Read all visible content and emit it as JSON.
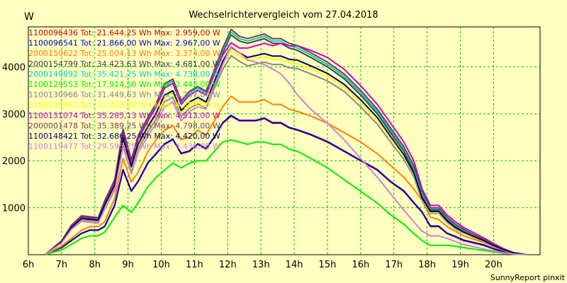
{
  "chart_data": {
    "type": "line",
    "title": "Wechselrichtervergleich vom 27.04.2018",
    "ylabel": "W",
    "credit": "SunnyReport pinxit",
    "xlim": [
      6,
      21.4
    ],
    "ylim": [
      0,
      4850
    ],
    "x_ticks": [
      6,
      7,
      8,
      9,
      10,
      11,
      12,
      13,
      14,
      15,
      16,
      17,
      18,
      19,
      20
    ],
    "x_tick_labels": [
      "6h",
      "7h",
      "8h",
      "9h",
      "10h",
      "11h",
      "12h",
      "13h",
      "14h",
      "15h",
      "16h",
      "17h",
      "18h",
      "19h",
      "20h"
    ],
    "y_ticks": [
      1000,
      2000,
      3000,
      4000
    ],
    "y_tick_labels": [
      "1000",
      "2000",
      "3000",
      "4000"
    ],
    "grid": true,
    "legend_position": "top-left",
    "x": [
      6.5,
      7,
      7.3,
      7.6,
      7.85,
      8.1,
      8.3,
      8.6,
      8.85,
      9.1,
      9.3,
      9.6,
      9.85,
      10.1,
      10.35,
      10.6,
      10.85,
      11.1,
      11.35,
      11.6,
      11.85,
      12.1,
      12.35,
      12.6,
      12.85,
      13.1,
      13.35,
      13.6,
      13.85,
      14.1,
      14.5,
      15,
      15.5,
      16,
      16.5,
      16.9,
      17.3,
      17.6,
      17.85,
      18.1,
      18.35,
      18.6,
      18.85,
      19.1,
      19.4,
      19.7,
      20,
      20.3,
      20.6,
      21
    ],
    "series": [
      {
        "name": "1100096436 Tot: 21.644,25 Wh Max: 2.959,00 W",
        "color": "#cc0000",
        "values": [
          0,
          150,
          300,
          450,
          520,
          520,
          600,
          1050,
          1800,
          1350,
          1550,
          1950,
          2150,
          2350,
          2450,
          2150,
          2200,
          2350,
          2250,
          2500,
          2800,
          2950,
          2850,
          2850,
          2850,
          2900,
          2800,
          2800,
          2700,
          2650,
          2550,
          2400,
          2200,
          2000,
          1800,
          1550,
          1350,
          1100,
          900,
          600,
          600,
          450,
          380,
          300,
          250,
          200,
          120,
          60,
          20,
          0
        ]
      },
      {
        "name": "1100096541 Tot: 21.866,00 Wh Max: 2.967,00 W",
        "color": "#0000cc",
        "values": [
          0,
          155,
          305,
          455,
          525,
          525,
          605,
          1060,
          1810,
          1360,
          1560,
          1960,
          2160,
          2360,
          2460,
          2160,
          2210,
          2360,
          2260,
          2510,
          2810,
          2967,
          2860,
          2860,
          2860,
          2910,
          2810,
          2810,
          2710,
          2660,
          2560,
          2410,
          2210,
          2010,
          1810,
          1560,
          1360,
          1110,
          910,
          610,
          610,
          460,
          390,
          310,
          260,
          210,
          130,
          70,
          25,
          0
        ]
      },
      {
        "name": "2000150622 Tot: 25.004,13 Wh Max: 3.374,00 W",
        "color": "#ff8000",
        "values": [
          0,
          180,
          350,
          520,
          600,
          600,
          700,
          1200,
          2050,
          1550,
          1750,
          2200,
          2450,
          2650,
          2750,
          2450,
          2500,
          2650,
          2550,
          2850,
          3150,
          3374,
          3250,
          3250,
          3250,
          3300,
          3200,
          3200,
          3100,
          3050,
          2950,
          2800,
          2600,
          2400,
          2150,
          1900,
          1650,
          1400,
          1150,
          800,
          750,
          600,
          500,
          400,
          330,
          260,
          170,
          90,
          30,
          0
        ]
      },
      {
        "name": "2000154799 Tot: 34.423,63 Wh Max: 4.681,00 W",
        "color": "#404040",
        "values": [
          0,
          280,
          600,
          800,
          780,
          760,
          1100,
          1550,
          2600,
          1950,
          2450,
          2850,
          3150,
          3550,
          3650,
          3200,
          3400,
          3500,
          3400,
          3850,
          4300,
          4681,
          4550,
          4500,
          4550,
          4600,
          4500,
          4500,
          4400,
          4350,
          4200,
          4000,
          3750,
          3400,
          3000,
          2600,
          2200,
          1800,
          1250,
          950,
          950,
          750,
          600,
          500,
          400,
          300,
          200,
          110,
          40,
          0
        ]
      },
      {
        "name": "2000149892 Tot: 35.421,25 Wh Max: 4.738,00 W",
        "color": "#00cccc",
        "values": [
          0,
          290,
          620,
          820,
          800,
          780,
          1130,
          1580,
          2650,
          2000,
          2500,
          2900,
          3200,
          3600,
          3700,
          3250,
          3450,
          3550,
          3450,
          3900,
          4350,
          4738,
          4600,
          4550,
          4600,
          4650,
          4550,
          4550,
          4450,
          4400,
          4250,
          4050,
          3800,
          3450,
          3050,
          2650,
          2250,
          1850,
          1300,
          980,
          980,
          780,
          630,
          520,
          420,
          320,
          210,
          115,
          42,
          0
        ]
      },
      {
        "name": "1100129553 Tot: 17.914,50 Wh Max: 2.442,00 W",
        "color": "#00ee00",
        "values": [
          0,
          100,
          220,
          350,
          400,
          400,
          480,
          800,
          1050,
          900,
          1100,
          1450,
          1650,
          1800,
          1950,
          1850,
          1950,
          2000,
          2000,
          2200,
          2400,
          2442,
          2400,
          2350,
          2400,
          2400,
          2350,
          2350,
          2250,
          2200,
          2050,
          1850,
          1600,
          1350,
          1100,
          850,
          650,
          450,
          300,
          200,
          200,
          200,
          180,
          150,
          120,
          90,
          60,
          30,
          10,
          0
        ]
      },
      {
        "name": "1100130966 Tot: 31.449,63 Wh Max: 4.237,00 W",
        "color": "#888888",
        "values": [
          0,
          260,
          560,
          740,
          720,
          700,
          1010,
          1420,
          2380,
          1790,
          2250,
          2620,
          2890,
          3260,
          3350,
          2940,
          3120,
          3210,
          3120,
          3540,
          3950,
          4237,
          4120,
          4020,
          4060,
          4100,
          4050,
          4050,
          3980,
          3960,
          3850,
          3700,
          3480,
          3150,
          2780,
          2400,
          2030,
          1660,
          1150,
          880,
          880,
          690,
          550,
          460,
          370,
          280,
          180,
          100,
          36,
          0
        ]
      },
      {
        "name": "1100130962 Tot: 32.303,00 Wh Max: 4.353,00 W",
        "color": "#ffff00",
        "values": [
          0,
          270,
          580,
          760,
          740,
          720,
          1040,
          1460,
          2440,
          1840,
          2310,
          2690,
          2970,
          3350,
          3440,
          3020,
          3200,
          3300,
          3200,
          3630,
          4060,
          4353,
          4230,
          4130,
          4170,
          4210,
          4160,
          4160,
          4090,
          4070,
          3950,
          3800,
          3570,
          3240,
          2860,
          2470,
          2090,
          1710,
          1180,
          900,
          900,
          710,
          570,
          470,
          380,
          290,
          190,
          105,
          38,
          0
        ]
      },
      {
        "name": "1100131074 Tot: 35.285,13 Wh Max: 4.513,00 W",
        "color": "#cc00cc",
        "values": [
          0,
          285,
          610,
          810,
          790,
          770,
          1120,
          1560,
          2600,
          1960,
          2450,
          2850,
          3150,
          3550,
          3650,
          3200,
          3400,
          3500,
          3400,
          3850,
          4250,
          4513,
          4400,
          4400,
          4450,
          4500,
          4450,
          4500,
          4450,
          4450,
          4350,
          4200,
          3950,
          3600,
          3200,
          2800,
          2400,
          2000,
          1400,
          1050,
          1050,
          850,
          700,
          580,
          470,
          360,
          240,
          130,
          45,
          0
        ]
      },
      {
        "name": "2000001478 Tot: 35.389,25 Wh Max: 4.798,00 W",
        "color": "#704050",
        "values": [
          0,
          295,
          630,
          830,
          810,
          790,
          1150,
          1600,
          2680,
          2020,
          2530,
          2930,
          3230,
          3640,
          3740,
          3280,
          3480,
          3580,
          3480,
          3940,
          4400,
          4798,
          4650,
          4600,
          4650,
          4700,
          4600,
          4600,
          4500,
          4450,
          4300,
          4100,
          3850,
          3500,
          3100,
          2700,
          2300,
          1900,
          1350,
          1000,
          1000,
          800,
          650,
          540,
          430,
          330,
          220,
          120,
          44,
          0
        ]
      },
      {
        "name": "1100148421 Tot: 32.686,25 Wh Max: 4.420,00 W",
        "color": "#000070",
        "values": [
          0,
          270,
          580,
          770,
          750,
          730,
          1060,
          1480,
          2480,
          1870,
          2350,
          2730,
          3020,
          3400,
          3490,
          3070,
          3250,
          3350,
          3250,
          3690,
          4120,
          4420,
          4300,
          4200,
          4240,
          4280,
          4230,
          4230,
          4160,
          4140,
          4020,
          3860,
          3630,
          3300,
          2920,
          2520,
          2130,
          1740,
          1200,
          920,
          920,
          720,
          580,
          480,
          390,
          300,
          195,
          108,
          39,
          0
        ]
      },
      {
        "name": "1100119477 Tot: 29.595,25 Wh Max: 4.436,00 W",
        "color": "#d080d0",
        "values": [
          0,
          250,
          540,
          710,
          690,
          670,
          970,
          1370,
          2300,
          1720,
          2170,
          2530,
          2800,
          3150,
          3250,
          2850,
          3050,
          3150,
          3100,
          3600,
          4050,
          4436,
          4300,
          4150,
          4100,
          4050,
          3950,
          3850,
          3650,
          3400,
          3100,
          2800,
          2450,
          2050,
          1650,
          1300,
          950,
          700,
          500,
          400,
          400,
          350,
          280,
          220,
          170,
          120,
          80,
          40,
          15,
          0
        ]
      }
    ]
  }
}
